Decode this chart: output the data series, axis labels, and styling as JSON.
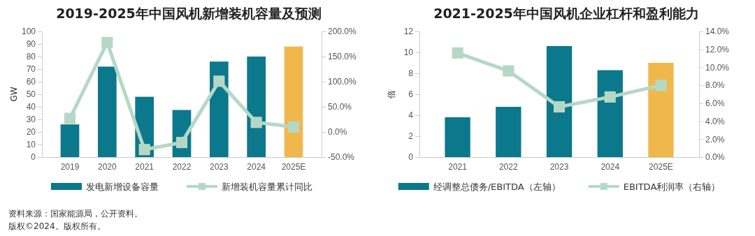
{
  "chart_data": [
    {
      "type": "bar",
      "title": "2019-2025年中国风机新增装机容量及预测",
      "categories": [
        "2019",
        "2020",
        "2021",
        "2022",
        "2023",
        "2024",
        "2025E"
      ],
      "ylabel": "GW",
      "ylim": [
        0,
        100
      ],
      "yticks": [
        0,
        10,
        20,
        30,
        40,
        50,
        60,
        70,
        80,
        90,
        100
      ],
      "y2lim": [
        -50,
        200
      ],
      "y2ticks": [
        {
          "value": -50,
          "label": "-50.0%"
        },
        {
          "value": 0,
          "label": "0.0%"
        },
        {
          "value": 50,
          "label": "50.0%"
        },
        {
          "value": 100,
          "label": "100.0%"
        },
        {
          "value": 150,
          "label": "150.0%"
        },
        {
          "value": 200,
          "label": "200.0%"
        }
      ],
      "grid": false,
      "legend": "bottom",
      "marker": "square",
      "line_style": "solid",
      "series": [
        {
          "name": "发电新增设备容量",
          "color": "#0b788c",
          "colors": [
            "#0b788c",
            "#0b788c",
            "#0b788c",
            "#0b788c",
            "#0b788c",
            "#0b788c",
            "#f0b84c"
          ],
          "values": [
            26,
            72,
            48,
            37.5,
            76,
            80,
            88
          ]
        },
        {
          "type": "line",
          "name": "新增装机容量累计同比",
          "color": "#b5d8c6",
          "axis": "y2",
          "values": [
            27,
            178,
            -35,
            -21,
            101,
            19,
            10
          ]
        }
      ],
      "annotations": [
        "资料来源：国家能源局，公开资料。",
        "版权©2024。版权所有。"
      ]
    },
    {
      "type": "bar",
      "title": "2021-2025年中国风机企业杠杆和盈利能力",
      "categories": [
        "2021",
        "2022",
        "2023",
        "2024",
        "2025E"
      ],
      "ylabel": "倍",
      "ylim": [
        0,
        12
      ],
      "yticks": [
        0,
        2,
        4,
        6,
        8,
        10,
        12
      ],
      "y2lim": [
        0,
        14
      ],
      "y2ticks": [
        {
          "value": 0,
          "label": "0.0%"
        },
        {
          "value": 2,
          "label": "2.0%"
        },
        {
          "value": 4,
          "label": "4.0%"
        },
        {
          "value": 6,
          "label": "6.0%"
        },
        {
          "value": 8,
          "label": "8.0%"
        },
        {
          "value": 10,
          "label": "10.0%"
        },
        {
          "value": 12,
          "label": "12.0%"
        },
        {
          "value": 14,
          "label": "14.0%"
        }
      ],
      "grid": false,
      "legend": "bottom",
      "marker": "square",
      "line_style": "solid",
      "series": [
        {
          "name": "经调整总债务/EBITDA（左轴）",
          "color": "#0b788c",
          "colors": [
            "#0b788c",
            "#0b788c",
            "#0b788c",
            "#0b788c",
            "#f0b84c"
          ],
          "values": [
            3.8,
            4.8,
            10.6,
            8.3,
            9.0
          ]
        },
        {
          "type": "line",
          "name": "EBITDA利润率（右轴）",
          "color": "#b5d8c6",
          "axis": "y2",
          "values": [
            11.6,
            9.6,
            5.6,
            6.7,
            8.0
          ]
        }
      ]
    }
  ]
}
